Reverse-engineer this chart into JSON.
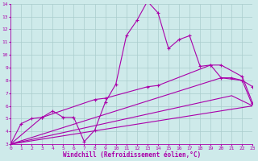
{
  "xlabel": "Windchill (Refroidissement éolien,°C)",
  "xlim": [
    0,
    23
  ],
  "ylim": [
    3,
    14
  ],
  "background_color": "#ceeaea",
  "line_color": "#aa00aa",
  "grid_color": "#aacccc",
  "line1_x": [
    0,
    1,
    2,
    3,
    4,
    5,
    6,
    7,
    8,
    9,
    10,
    11,
    12,
    13,
    14,
    15,
    16,
    17,
    18,
    19,
    20,
    21,
    22,
    23
  ],
  "line1_y": [
    3.0,
    4.6,
    5.0,
    5.1,
    5.6,
    5.1,
    5.1,
    3.2,
    4.1,
    6.3,
    7.7,
    11.5,
    12.7,
    14.2,
    13.3,
    10.5,
    11.2,
    11.5,
    9.1,
    9.2,
    8.2,
    8.2,
    8.0,
    7.5
  ],
  "line2_x": [
    0,
    3,
    8,
    9,
    13,
    14,
    19,
    20,
    22,
    23
  ],
  "line2_y": [
    3.0,
    5.1,
    6.5,
    6.6,
    7.5,
    7.6,
    9.2,
    9.2,
    8.3,
    6.2
  ],
  "line3_x": [
    0,
    23
  ],
  "line3_y": [
    3.0,
    6.0
  ],
  "line4_x": [
    0,
    20,
    22,
    23
  ],
  "line4_y": [
    3.0,
    8.2,
    8.0,
    6.0
  ],
  "line5_x": [
    0,
    21,
    23
  ],
  "line5_y": [
    3.0,
    6.8,
    6.0
  ]
}
